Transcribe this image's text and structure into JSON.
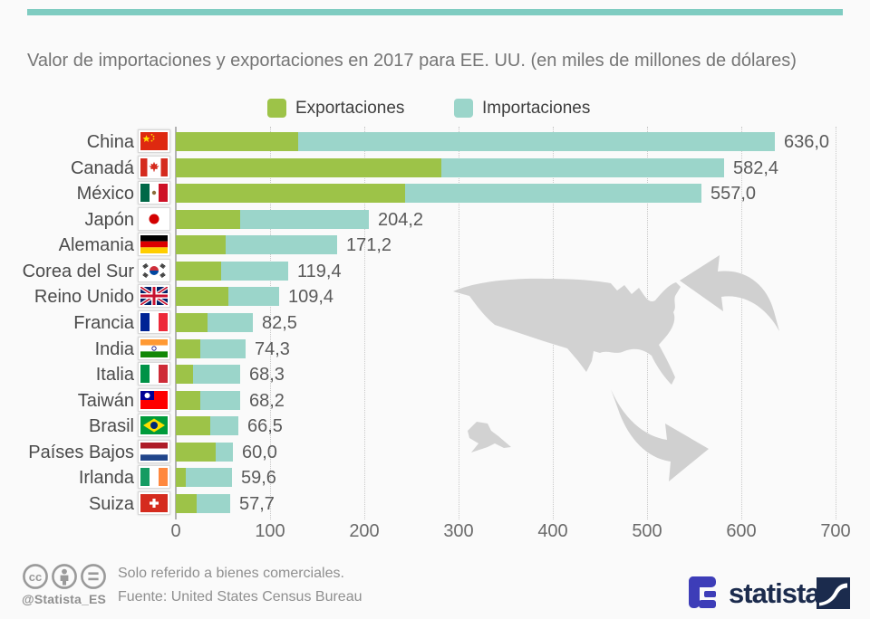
{
  "title": "Valor de importaciones y exportaciones en 2017 para EE. UU. (en miles de millones de dólares)",
  "legend": {
    "exports_label": "Exportaciones",
    "imports_label": "Importaciones"
  },
  "colors": {
    "exports": "#9dc348",
    "imports": "#9bd5ca",
    "top_bar": "#7fccc1",
    "map_gray": "#d2d2d2",
    "arrow_gray": "#d0d0d0",
    "axis_line": "#b3b3b3",
    "gridline": "#c9c9c9"
  },
  "chart_data": {
    "type": "bar",
    "stacked": true,
    "orientation": "horizontal",
    "title": "Valor de importaciones y exportaciones en 2017 para EE. UU. (en miles de millones de dólares)",
    "xlabel": "",
    "ylabel": "",
    "xlim": [
      0,
      700
    ],
    "x_ticks": [
      0,
      100,
      200,
      300,
      400,
      500,
      600,
      700
    ],
    "x_tick_labels": [
      "0",
      "100",
      "200",
      "300",
      "400",
      "500",
      "600",
      "700"
    ],
    "grid": "vertical-dotted",
    "legend_position": "top",
    "categories": [
      "China",
      "Canadá",
      "México",
      "Japón",
      "Alemania",
      "Corea del Sur",
      "Reino Unido",
      "Francia",
      "India",
      "Italia",
      "Taiwán",
      "Brasil",
      "Países Bajos",
      "Irlanda",
      "Suiza"
    ],
    "series": [
      {
        "name": "Exportaciones",
        "color": "#9dc348",
        "values": [
          130.0,
          282.0,
          243.0,
          68.0,
          53.0,
          48.0,
          56.0,
          34.0,
          26.0,
          18.0,
          26.0,
          37.0,
          42.0,
          11.0,
          22.0
        ]
      },
      {
        "name": "Importaciones",
        "color": "#9bd5ca",
        "values": [
          506.0,
          300.4,
          314.0,
          136.2,
          118.2,
          71.4,
          53.4,
          48.5,
          48.3,
          50.3,
          42.2,
          29.5,
          18.0,
          48.6,
          35.7
        ]
      }
    ],
    "totals": [
      636.0,
      582.4,
      557.0,
      204.2,
      171.2,
      119.4,
      109.4,
      82.5,
      74.3,
      68.3,
      68.2,
      66.5,
      60.0,
      59.6,
      57.7
    ],
    "exports_note": "export segment values estimated from bar lengths; only totals are labeled on chart",
    "rows": [
      {
        "label": "China",
        "flag": "cn",
        "exports": 130.0,
        "total": 636.0,
        "total_label": "636,0"
      },
      {
        "label": "Canadá",
        "flag": "ca",
        "exports": 282.0,
        "total": 582.4,
        "total_label": "582,4"
      },
      {
        "label": "México",
        "flag": "mx",
        "exports": 243.0,
        "total": 557.0,
        "total_label": "557,0"
      },
      {
        "label": "Japón",
        "flag": "jp",
        "exports": 68.0,
        "total": 204.2,
        "total_label": "204,2"
      },
      {
        "label": "Alemania",
        "flag": "de",
        "exports": 53.0,
        "total": 171.2,
        "total_label": "171,2"
      },
      {
        "label": "Corea del Sur",
        "flag": "kr",
        "exports": 48.0,
        "total": 119.4,
        "total_label": "119,4"
      },
      {
        "label": "Reino Unido",
        "flag": "gb",
        "exports": 56.0,
        "total": 109.4,
        "total_label": "109,4"
      },
      {
        "label": "Francia",
        "flag": "fr",
        "exports": 34.0,
        "total": 82.5,
        "total_label": "82,5"
      },
      {
        "label": "India",
        "flag": "in",
        "exports": 26.0,
        "total": 74.3,
        "total_label": "74,3"
      },
      {
        "label": "Italia",
        "flag": "it",
        "exports": 18.0,
        "total": 68.3,
        "total_label": "68,3"
      },
      {
        "label": "Taiwán",
        "flag": "tw",
        "exports": 26.0,
        "total": 68.2,
        "total_label": "68,2"
      },
      {
        "label": "Brasil",
        "flag": "br",
        "exports": 37.0,
        "total": 66.5,
        "total_label": "66,5"
      },
      {
        "label": "Países Bajos",
        "flag": "nl",
        "exports": 42.0,
        "total": 60.0,
        "total_label": "60,0"
      },
      {
        "label": "Irlanda",
        "flag": "ie",
        "exports": 11.0,
        "total": 59.6,
        "total_label": "59,6"
      },
      {
        "label": "Suiza",
        "flag": "ch",
        "exports": 22.0,
        "total": 57.7,
        "total_label": "57,7"
      }
    ]
  },
  "footer": {
    "note_line1": "Solo referido a bienes comerciales.",
    "note_line2": "Fuente: United States Census Bureau",
    "handle": "@Statista_ES",
    "cc_text": "cc"
  },
  "branding": {
    "wordmark": "statista"
  }
}
